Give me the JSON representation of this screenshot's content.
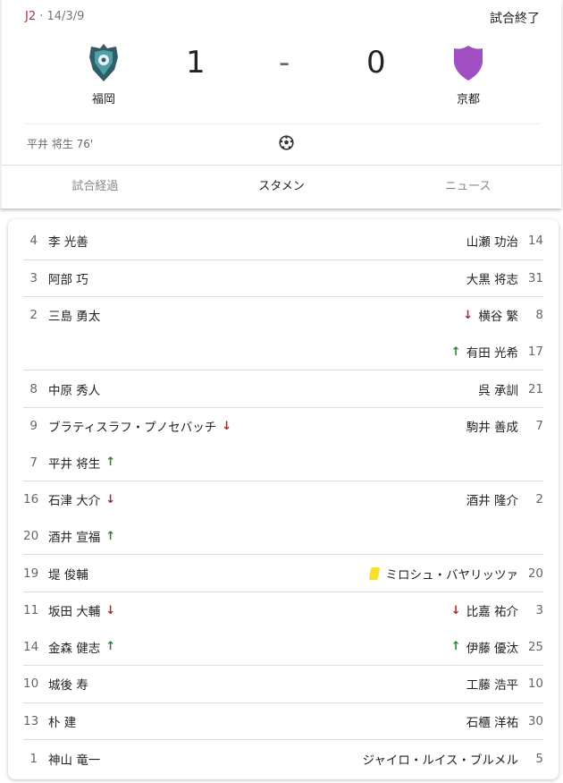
{
  "match": {
    "league": "J2",
    "date": "14/3/9",
    "status": "試合終了",
    "home": {
      "name": "福岡",
      "score": "1"
    },
    "away": {
      "name": "京都",
      "score": "0",
      "crest_color": "#a04fc2"
    },
    "separator": "-",
    "scorer": "平井 将生 76'"
  },
  "tabs": [
    {
      "label": "試合経過",
      "active": false
    },
    {
      "label": "スタメン",
      "active": true
    },
    {
      "label": "ニュース",
      "active": false
    }
  ],
  "colors": {
    "sub_out": "#b0262a",
    "sub_in": "#2e7d32",
    "yellow_card": "#f4e12b"
  },
  "lineup": [
    [
      {
        "l": {
          "num": "4",
          "name": "李 光善"
        },
        "r": {
          "name": "山瀬 功治",
          "num": "14"
        }
      }
    ],
    [
      {
        "l": {
          "num": "3",
          "name": "阿部 巧"
        },
        "r": {
          "name": "大黒 将志",
          "num": "31"
        }
      }
    ],
    [
      {
        "l": {
          "num": "2",
          "name": "三島 勇太"
        },
        "r": {
          "name": "横谷 繁",
          "num": "8",
          "icon": "arrow-down"
        }
      },
      {
        "l": null,
        "r": {
          "name": "有田 光希",
          "num": "17",
          "icon": "arrow-up"
        }
      }
    ],
    [
      {
        "l": {
          "num": "8",
          "name": "中原 秀人"
        },
        "r": {
          "name": "呉 承訓",
          "num": "21"
        }
      }
    ],
    [
      {
        "l": {
          "num": "9",
          "name": "ブラティスラフ・プノセバッチ",
          "icon": "arrow-down"
        },
        "r": {
          "name": "駒井 善成",
          "num": "7"
        }
      },
      {
        "l": {
          "num": "7",
          "name": "平井 将生",
          "icon": "arrow-up"
        },
        "r": null
      }
    ],
    [
      {
        "l": {
          "num": "16",
          "name": "石津 大介",
          "icon": "arrow-down"
        },
        "r": {
          "name": "酒井 隆介",
          "num": "2"
        }
      },
      {
        "l": {
          "num": "20",
          "name": "酒井 宣福",
          "icon": "arrow-up"
        },
        "r": null
      }
    ],
    [
      {
        "l": {
          "num": "19",
          "name": "堤 俊輔"
        },
        "r": {
          "name": "ミロシュ・バヤリッツァ",
          "num": "20",
          "icon": "yellow-card"
        }
      }
    ],
    [
      {
        "l": {
          "num": "11",
          "name": "坂田 大輔",
          "icon": "arrow-down"
        },
        "r": {
          "name": "比嘉 祐介",
          "num": "3",
          "icon": "arrow-down"
        }
      },
      {
        "l": {
          "num": "14",
          "name": "金森 健志",
          "icon": "arrow-up"
        },
        "r": {
          "name": "伊藤 優汰",
          "num": "25",
          "icon": "arrow-up"
        }
      }
    ],
    [
      {
        "l": {
          "num": "10",
          "name": "城後 寿"
        },
        "r": {
          "name": "工藤 浩平",
          "num": "10"
        }
      }
    ],
    [
      {
        "l": {
          "num": "13",
          "name": "朴 建"
        },
        "r": {
          "name": "石櫃 洋祐",
          "num": "30"
        }
      }
    ],
    [
      {
        "l": {
          "num": "1",
          "name": "神山 竜一"
        },
        "r": {
          "name": "ジャイロ・ルイス・ブルメル",
          "num": "5"
        }
      }
    ]
  ]
}
